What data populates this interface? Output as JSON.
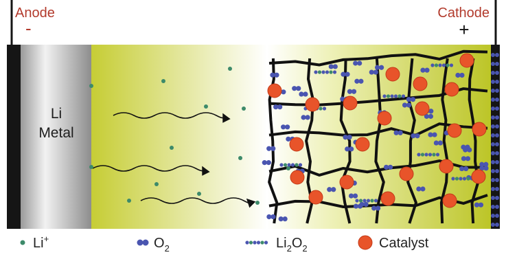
{
  "anode": {
    "label": "Anode",
    "sign": "-"
  },
  "cathode": {
    "label": "Cathode",
    "sign": "+"
  },
  "li_metal": [
    "Li",
    "Metal"
  ],
  "legend": {
    "li_ion": {
      "text": "Li",
      "superscript": "+"
    },
    "o2": {
      "text": "O",
      "subscript": "2"
    },
    "li2o2": {
      "parts": [
        "Li",
        "2",
        "O",
        "2"
      ]
    },
    "catalyst": {
      "text": "Catalyst"
    }
  }
}
